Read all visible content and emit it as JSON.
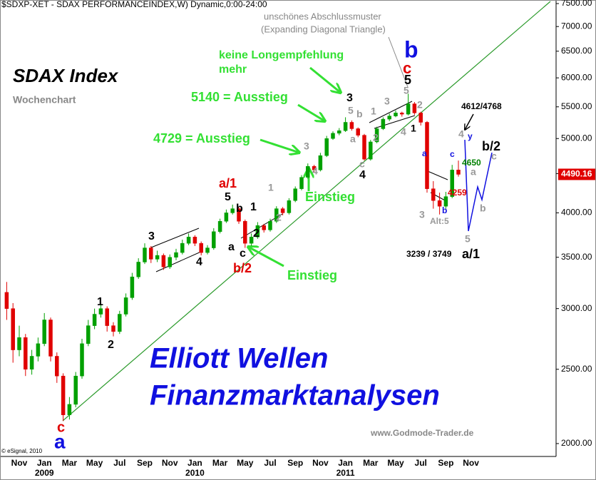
{
  "chart_data": {
    "type": "candlestick",
    "log_scale": true,
    "ylim": [
      1924,
      7581
    ],
    "yticks": [
      {
        "value": 2000,
        "label": "2000.00"
      },
      {
        "value": 2500,
        "label": "2500.00"
      },
      {
        "value": 3000,
        "label": "3000.00"
      },
      {
        "value": 3500,
        "label": "3500.00"
      },
      {
        "value": 4000,
        "label": "4000.00"
      },
      {
        "value": 4500,
        "label": "4500.00"
      },
      {
        "value": 5000,
        "label": "5000.00"
      },
      {
        "value": 5500,
        "label": "5500.00"
      },
      {
        "value": 6000,
        "label": "6000.00"
      },
      {
        "value": 6500,
        "label": "6500.00"
      },
      {
        "value": 7000,
        "label": "7000.00"
      },
      {
        "value": 7500,
        "label": "7500.00"
      }
    ],
    "up_color": "#00a000",
    "down_color": "#e00000",
    "last_price": 4490.16,
    "last_price_color": "#e00000",
    "categories": [
      null,
      null,
      "Nov",
      null,
      null,
      null,
      "Jan",
      null,
      null,
      null,
      "Mar",
      null,
      null,
      null,
      "May",
      null,
      null,
      null,
      "Jul",
      null,
      null,
      null,
      "Sep",
      null,
      null,
      null,
      "Nov",
      null,
      null,
      null,
      "Jan",
      null,
      null,
      null,
      "Mar",
      null,
      null,
      null,
      "May",
      null,
      null,
      null,
      "Jul",
      null,
      null,
      null,
      "Sep",
      null,
      null,
      null,
      "Nov",
      null,
      null,
      null,
      "Jan",
      null,
      null,
      null,
      "Mar",
      null,
      null,
      null,
      "May",
      null,
      null,
      null,
      "Jul",
      null,
      null,
      null,
      "Sep",
      null,
      null,
      null,
      "Nov"
    ],
    "years": [
      null,
      null,
      null,
      null,
      null,
      null,
      "2009",
      null,
      null,
      null,
      null,
      null,
      null,
      null,
      null,
      null,
      null,
      null,
      null,
      null,
      null,
      null,
      null,
      null,
      null,
      null,
      null,
      null,
      null,
      null,
      "2010",
      null,
      null,
      null,
      null,
      null,
      null,
      null,
      null,
      null,
      null,
      null,
      null,
      null,
      null,
      null,
      null,
      null,
      null,
      null,
      null,
      null,
      null,
      null,
      "2011",
      null,
      null,
      null,
      null,
      null,
      null,
      null,
      null,
      null,
      null,
      null,
      null,
      null,
      null,
      null,
      null,
      null,
      null,
      null,
      null
    ],
    "open": [
      3150,
      3000,
      2650,
      2750,
      2500,
      2600,
      2700,
      2900,
      2600,
      2450,
      2180,
      2250,
      2450,
      2700,
      2850,
      2950,
      3000,
      2850,
      2800,
      2950,
      3100,
      3300,
      3450,
      3600,
      3480,
      3520,
      3400,
      3500,
      3550,
      3650,
      3720,
      3650,
      3550,
      3600,
      3780,
      3900,
      4000,
      4050,
      3900,
      3650,
      3720,
      3850,
      3800,
      3900,
      4050,
      4000,
      4150,
      4300,
      4450,
      4600,
      4550,
      4750,
      5000,
      5080,
      5120,
      5250,
      5150,
      5050,
      4700,
      4950,
      5150,
      5300,
      5350,
      5400,
      5380,
      5550,
      5400,
      5250,
      4300,
      4150,
      4080,
      4200,
      4550,
      null,
      null
    ],
    "high": [
      3250,
      3050,
      2850,
      2780,
      2650,
      2750,
      2960,
      2920,
      2630,
      2470,
      2300,
      2480,
      2740,
      2900,
      3000,
      3060,
      3020,
      2880,
      2980,
      3140,
      3340,
      3490,
      3650,
      3620,
      3570,
      3540,
      3530,
      3590,
      3690,
      3760,
      3740,
      3670,
      3630,
      3820,
      3930,
      4040,
      4100,
      4070,
      3920,
      3760,
      3890,
      3870,
      3930,
      4080,
      4070,
      4180,
      4330,
      4480,
      4640,
      4620,
      4790,
      5040,
      5110,
      5160,
      5330,
      5280,
      5170,
      5070,
      4980,
      5180,
      5330,
      5390,
      5440,
      5420,
      5720,
      5580,
      5420,
      5270,
      4400,
      4250,
      4260,
      4620,
      4680,
      null,
      null
    ],
    "low": [
      2900,
      2550,
      2600,
      2450,
      2460,
      2560,
      2680,
      2560,
      2400,
      2140,
      2150,
      2230,
      2430,
      2680,
      2820,
      2920,
      2800,
      2760,
      2780,
      2930,
      3080,
      3280,
      3430,
      3440,
      3450,
      3370,
      3380,
      3470,
      3530,
      3630,
      3620,
      3520,
      3530,
      3580,
      3760,
      3880,
      3980,
      3870,
      3600,
      3620,
      3700,
      3770,
      3780,
      3880,
      3970,
      3980,
      4130,
      4280,
      4430,
      4520,
      4530,
      4730,
      4980,
      5050,
      5100,
      5120,
      5020,
      4680,
      4680,
      4930,
      5130,
      5270,
      5330,
      5340,
      5360,
      5370,
      5200,
      4250,
      4050,
      3980,
      4050,
      4180,
      4460,
      null,
      null
    ],
    "close": [
      3000,
      2650,
      2750,
      2500,
      2600,
      2700,
      2900,
      2600,
      2450,
      2180,
      2250,
      2450,
      2700,
      2850,
      2950,
      3000,
      2850,
      2800,
      2950,
      3100,
      3300,
      3450,
      3600,
      3480,
      3520,
      3400,
      3500,
      3550,
      3650,
      3720,
      3650,
      3550,
      3600,
      3780,
      3900,
      4000,
      4050,
      3900,
      3650,
      3720,
      3850,
      3800,
      3900,
      4050,
      4000,
      4150,
      4300,
      4450,
      4600,
      4550,
      4750,
      5000,
      5080,
      5120,
      5250,
      5150,
      5050,
      4700,
      4950,
      5150,
      5300,
      5350,
      5400,
      5380,
      5550,
      5400,
      5250,
      4300,
      4150,
      4080,
      4200,
      4550,
      4490,
      null,
      null
    ],
    "annotations": [
      {
        "text": "$SDXP-XET - SDAX PERFORMANCEINDEX,W) Dynamic,0:00-24:00",
        "color": "#000000"
      },
      {
        "text": "SDAX Index",
        "color": "#000000"
      },
      {
        "text": "Wochenchart",
        "color": "#888888"
      },
      {
        "text": "unschönes Abschlussmuster",
        "color": "#888888"
      },
      {
        "text": "(Expanding Diagonal Triangle)",
        "color": "#888888"
      },
      {
        "text": "keine Longempfehlung",
        "color": "#33e033"
      },
      {
        "text": "mehr",
        "color": "#33e033"
      },
      {
        "text": "5140 = Ausstieg",
        "color": "#33e033"
      },
      {
        "text": "4729 = Ausstieg",
        "color": "#33e033"
      },
      {
        "text": "Einstieg",
        "color": "#33e033"
      },
      {
        "text": "Einstieg",
        "color": "#33e033"
      },
      {
        "text": "Elliott Wellen",
        "color": "#1010e0"
      },
      {
        "text": "Finanzmarktanalysen",
        "color": "#1010e0"
      },
      {
        "text": "www.Godmode-Trader.de",
        "color": "#888888"
      },
      {
        "text": "© eSignal, 2010",
        "color": "#000000"
      },
      {
        "text": "4612/4768",
        "color": "#000000"
      },
      {
        "text": "4650",
        "color": "#008000"
      },
      {
        "text": "4259",
        "color": "#e00000"
      },
      {
        "text": "Alt:5",
        "color": "#999999"
      },
      {
        "text": "3239 / 3749",
        "color": "#000000"
      },
      {
        "text": "b/2",
        "color": "#000000"
      },
      {
        "text": "a/1",
        "color": "#000000"
      },
      {
        "text": "c",
        "color": "#e00000"
      },
      {
        "text": "a",
        "color": "#1010e0"
      },
      {
        "text": "1",
        "color": "#000000"
      },
      {
        "text": "2",
        "color": "#000000"
      },
      {
        "text": "3",
        "color": "#000000"
      },
      {
        "text": "4",
        "color": "#000000"
      },
      {
        "text": "a/1",
        "color": "#e00000"
      },
      {
        "text": "5",
        "color": "#000000"
      },
      {
        "text": "b",
        "color": "#000000"
      },
      {
        "text": "1",
        "color": "#000000"
      },
      {
        "text": "a",
        "color": "#000000"
      },
      {
        "text": "c",
        "color": "#000000"
      },
      {
        "text": "2",
        "color": "#000000"
      },
      {
        "text": "b/2",
        "color": "#e00000"
      },
      {
        "text": "1",
        "color": "#999999"
      },
      {
        "text": "2",
        "color": "#999999"
      },
      {
        "text": "3",
        "color": "#999999"
      },
      {
        "text": "4",
        "color": "#999999"
      },
      {
        "text": "3",
        "color": "#000000"
      },
      {
        "text": "5",
        "color": "#999999"
      },
      {
        "text": "b",
        "color": "#999999"
      },
      {
        "text": "a",
        "color": "#999999"
      },
      {
        "text": "c",
        "color": "#999999"
      },
      {
        "text": "4",
        "color": "#000000"
      },
      {
        "text": "1",
        "color": "#999999"
      },
      {
        "text": "2",
        "color": "#999999"
      },
      {
        "text": "3",
        "color": "#999999"
      },
      {
        "text": "5",
        "color": "#999999"
      },
      {
        "text": "4",
        "color": "#999999"
      },
      {
        "text": "1",
        "color": "#000000"
      },
      {
        "text": "2",
        "color": "#999999"
      },
      {
        "text": "b",
        "color": "#1010e0"
      },
      {
        "text": "c",
        "color": "#e00000"
      },
      {
        "text": "5",
        "color": "#000000"
      },
      {
        "text": "a",
        "color": "#1010e0"
      },
      {
        "text": "3",
        "color": "#999999"
      },
      {
        "text": "b",
        "color": "#1010e0"
      },
      {
        "text": "c",
        "color": "#1010e0"
      },
      {
        "text": "a",
        "color": "#999999"
      },
      {
        "text": "4",
        "color": "#999999"
      },
      {
        "text": "y",
        "color": "#1010e0"
      },
      {
        "text": "c",
        "color": "#999999"
      },
      {
        "text": "b",
        "color": "#999999"
      },
      {
        "text": "5",
        "color": "#999999"
      }
    ]
  }
}
